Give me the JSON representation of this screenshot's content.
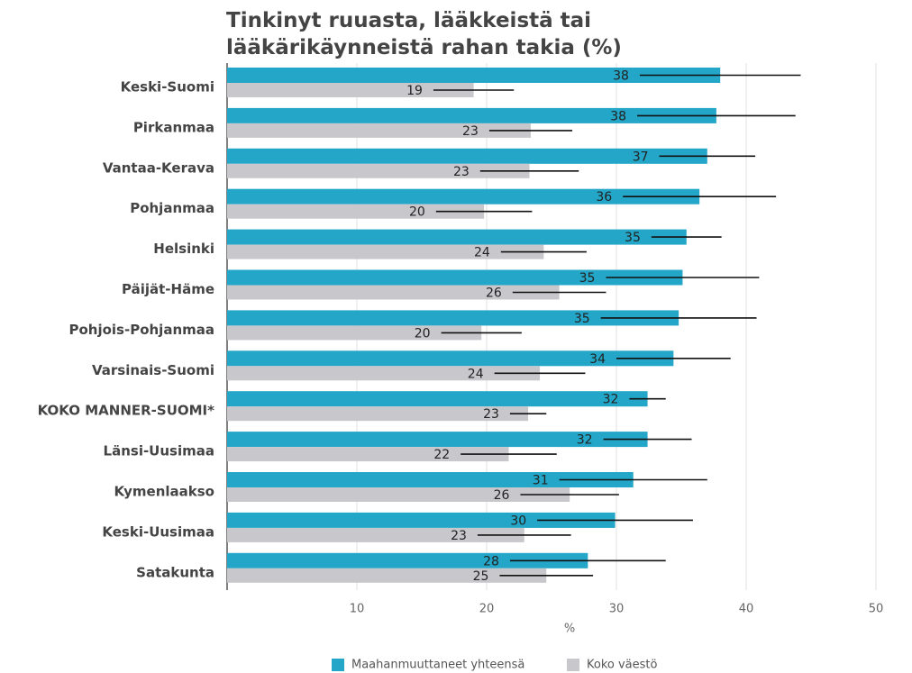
{
  "chart_data": {
    "type": "bar",
    "orientation": "horizontal",
    "title": [
      "Tinkinyt ruuasta, lääkkeistä tai",
      "lääkärikäynneistä rahan takia (%)"
    ],
    "xlabel": "%",
    "categories": [
      "Keski-Suomi",
      "Pirkanmaa",
      "Vantaa-Kerava",
      "Pohjanmaa",
      "Helsinki",
      "Päijät-Häme",
      "Pohjois-Pohjanmaa",
      "Varsinais-Suomi",
      "KOKO MANNER-SUOMI*",
      "Länsi-Uusimaa",
      "Kymenlaakso",
      "Keski-Uusimaa",
      "Satakunta"
    ],
    "series": [
      {
        "name": "Maahanmuuttaneet yhteensä",
        "color": "#23a6c7",
        "values": [
          38.0,
          37.7,
          37.0,
          36.4,
          35.4,
          35.1,
          34.8,
          34.4,
          32.4,
          32.4,
          31.3,
          29.9,
          27.8
        ],
        "value_labels": [
          "38",
          "38",
          "37",
          "36",
          "35",
          "35",
          "35",
          "34",
          "32",
          "32",
          "31",
          "30",
          "28"
        ],
        "errors": [
          6.2,
          6.1,
          3.7,
          5.9,
          2.7,
          5.9,
          6.0,
          4.4,
          1.4,
          3.4,
          5.7,
          6.0,
          6.0
        ]
      },
      {
        "name": "Koko väestö",
        "color": "#c8c8cc",
        "values": [
          19.0,
          23.4,
          23.3,
          19.8,
          24.4,
          25.6,
          19.6,
          24.1,
          23.2,
          21.7,
          26.4,
          22.9,
          24.6
        ],
        "value_labels": [
          "19",
          "23",
          "23",
          "20",
          "24",
          "26",
          "20",
          "24",
          "23",
          "22",
          "26",
          "23",
          "25"
        ],
        "errors": [
          3.1,
          3.2,
          3.8,
          3.7,
          3.3,
          3.6,
          3.1,
          3.5,
          1.4,
          3.7,
          3.8,
          3.6,
          3.6
        ]
      }
    ],
    "xlim": [
      0,
      50
    ],
    "xticks": [
      10,
      20,
      30,
      40,
      50
    ],
    "grid": true
  }
}
